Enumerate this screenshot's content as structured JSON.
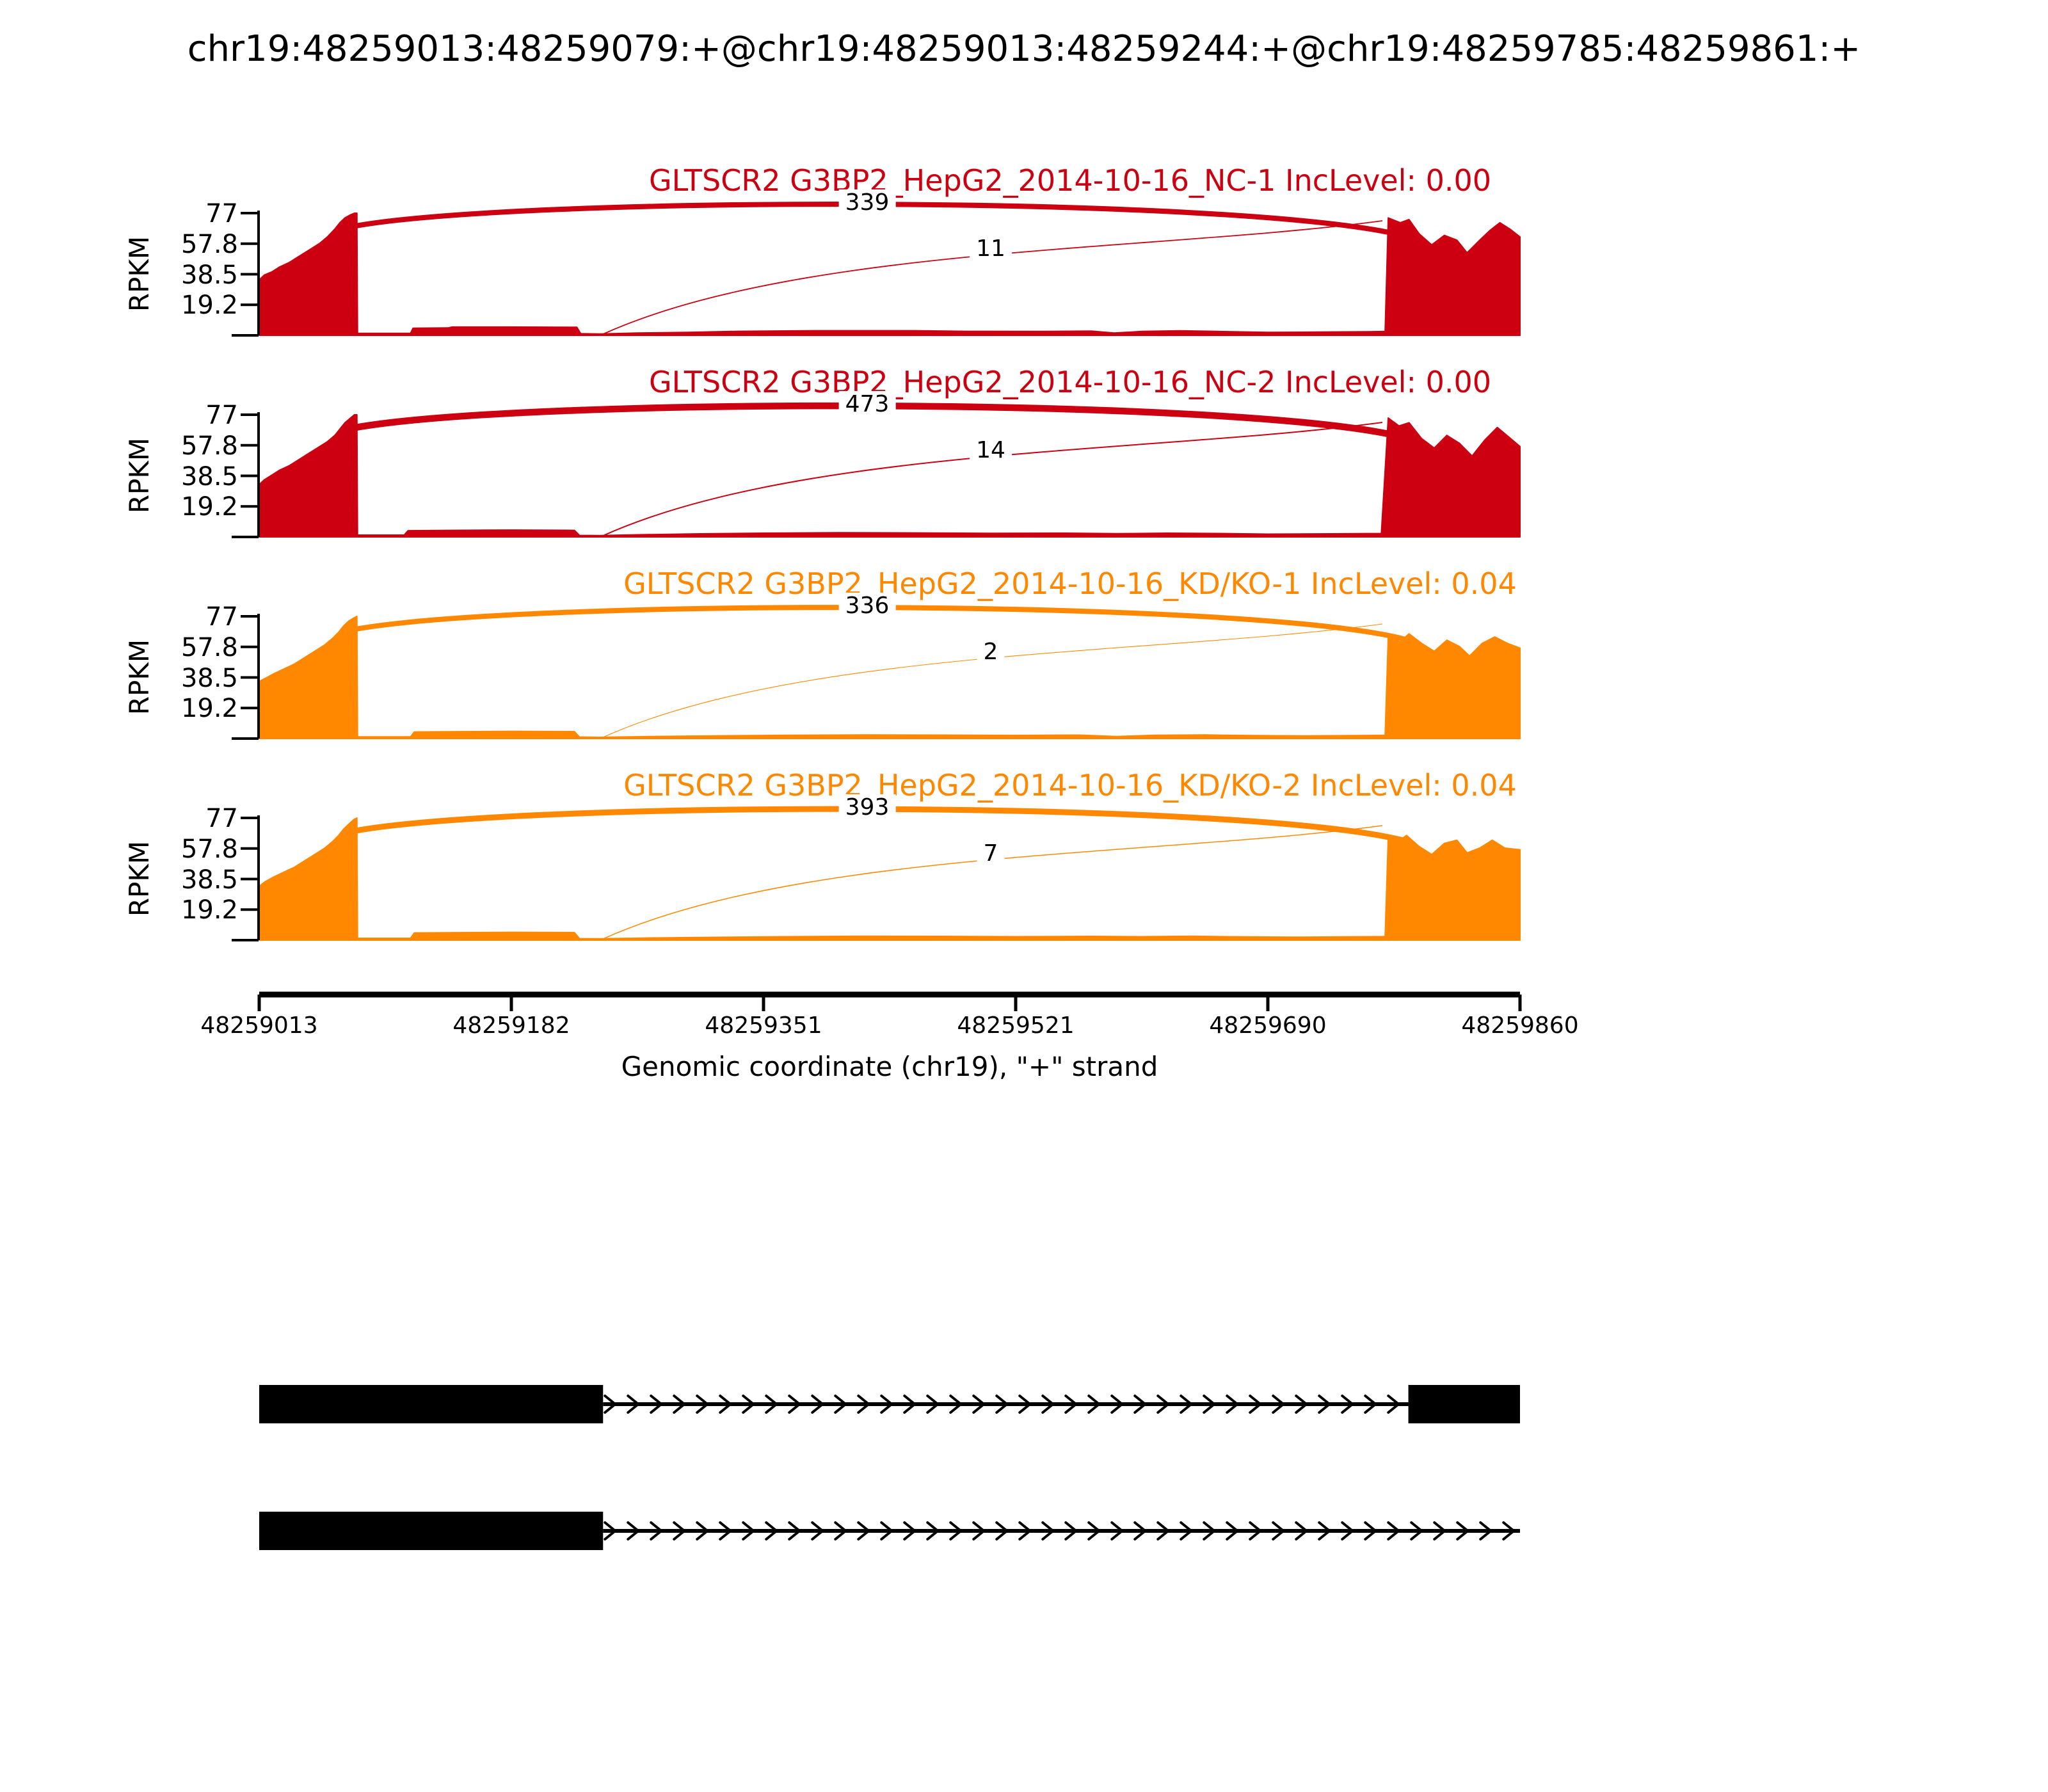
{
  "title": "chr19:48259013:48259079:+@chr19:48259013:48259244:+@chr19:48259785:48259861:+",
  "colors": {
    "nc": "#CC0011",
    "kdko": "#FF8800",
    "ink": "#000000"
  },
  "chart_data": {
    "type": "area",
    "subtype": "sashimi-coverage",
    "region_chrom": "chr19",
    "region_start": 48259013,
    "region_end": 48259860,
    "x_label": "Genomic coordinate (chr19), \"+\" strand",
    "x_ticks": [
      "48259013",
      "48259182",
      "48259351",
      "48259521",
      "48259690",
      "48259860"
    ],
    "y_label": "RPKM",
    "y_ticks": [
      19.2,
      38.5,
      57.8,
      77
    ],
    "y_max": 77,
    "grid": false,
    "tracks": [
      {
        "label": "GLTSCR2 G3BP2_HepG2_2014-10-16_NC-1 IncLevel: 0.00",
        "color_key": "nc",
        "inc_level": "0.00",
        "junctions": [
          {
            "kind": "top",
            "from": 48259079,
            "to": 48259785,
            "count": 339
          },
          {
            "kind": "low",
            "from": 48259244,
            "to": 48259785,
            "count": 11
          }
        ],
        "coverage": [
          [
            0,
            35
          ],
          [
            0.004,
            38
          ],
          [
            0.01,
            40
          ],
          [
            0.016,
            43
          ],
          [
            0.024,
            46
          ],
          [
            0.032,
            50
          ],
          [
            0.04,
            54
          ],
          [
            0.048,
            58
          ],
          [
            0.054,
            62
          ],
          [
            0.06,
            67
          ],
          [
            0.064,
            71
          ],
          [
            0.068,
            74
          ],
          [
            0.0725,
            76
          ],
          [
            0.0755,
            77
          ],
          [
            0.0775,
            77
          ],
          [
            0.078,
            1.3
          ],
          [
            0.12,
            1.3
          ],
          [
            0.122,
            4.5
          ],
          [
            0.15,
            4.7
          ],
          [
            0.153,
            5.3
          ],
          [
            0.2,
            5.3
          ],
          [
            0.252,
            5.1
          ],
          [
            0.255,
            1.1
          ],
          [
            0.27,
            0.9
          ],
          [
            0.3,
            1.5
          ],
          [
            0.34,
            1.9
          ],
          [
            0.38,
            2.6
          ],
          [
            0.44,
            3
          ],
          [
            0.52,
            3
          ],
          [
            0.56,
            2.6
          ],
          [
            0.62,
            2.5
          ],
          [
            0.66,
            2.7
          ],
          [
            0.678,
            1.5
          ],
          [
            0.7,
            2.5
          ],
          [
            0.73,
            2.9
          ],
          [
            0.76,
            2.5
          ],
          [
            0.8,
            1.9
          ],
          [
            0.84,
            2.1
          ],
          [
            0.88,
            2.3
          ],
          [
            0.893,
            2.5
          ],
          [
            0.8955,
            74
          ],
          [
            0.905,
            71
          ],
          [
            0.912,
            73
          ],
          [
            0.92,
            64
          ],
          [
            0.93,
            57
          ],
          [
            0.94,
            63
          ],
          [
            0.95,
            60
          ],
          [
            0.958,
            52
          ],
          [
            0.968,
            60
          ],
          [
            0.976,
            66
          ],
          [
            0.984,
            71
          ],
          [
            0.992,
            67
          ],
          [
            1,
            62
          ]
        ]
      },
      {
        "label": "GLTSCR2 G3BP2_HepG2_2014-10-16_NC-2 IncLevel: 0.00",
        "color_key": "nc",
        "inc_level": "0.00",
        "junctions": [
          {
            "kind": "top",
            "from": 48259079,
            "to": 48259785,
            "count": 473
          },
          {
            "kind": "low",
            "from": 48259244,
            "to": 48259785,
            "count": 14
          }
        ],
        "coverage": [
          [
            0,
            33
          ],
          [
            0.004,
            36
          ],
          [
            0.01,
            39
          ],
          [
            0.016,
            42
          ],
          [
            0.024,
            45
          ],
          [
            0.032,
            49
          ],
          [
            0.04,
            53
          ],
          [
            0.048,
            57
          ],
          [
            0.054,
            60
          ],
          [
            0.06,
            64
          ],
          [
            0.064,
            68
          ],
          [
            0.068,
            72
          ],
          [
            0.0725,
            75
          ],
          [
            0.0755,
            77
          ],
          [
            0.0775,
            77
          ],
          [
            0.078,
            1.2
          ],
          [
            0.115,
            1.2
          ],
          [
            0.118,
            4
          ],
          [
            0.15,
            4.2
          ],
          [
            0.2,
            4.4
          ],
          [
            0.25,
            4.2
          ],
          [
            0.254,
            1
          ],
          [
            0.27,
            0.9
          ],
          [
            0.3,
            1.4
          ],
          [
            0.35,
            2
          ],
          [
            0.4,
            2.4
          ],
          [
            0.46,
            2.7
          ],
          [
            0.52,
            2.6
          ],
          [
            0.58,
            2.3
          ],
          [
            0.64,
            2.4
          ],
          [
            0.68,
            2.1
          ],
          [
            0.72,
            2.4
          ],
          [
            0.76,
            2.2
          ],
          [
            0.8,
            1.8
          ],
          [
            0.85,
            2
          ],
          [
            0.89,
            2.2
          ],
          [
            0.8955,
            75
          ],
          [
            0.904,
            70
          ],
          [
            0.912,
            72
          ],
          [
            0.922,
            62
          ],
          [
            0.932,
            56
          ],
          [
            0.942,
            64
          ],
          [
            0.952,
            59
          ],
          [
            0.962,
            51
          ],
          [
            0.972,
            61
          ],
          [
            0.982,
            69
          ],
          [
            0.991,
            63
          ],
          [
            1,
            57
          ]
        ]
      },
      {
        "label": "GLTSCR2 G3BP2_HepG2_2014-10-16_KD/KO-1 IncLevel: 0.04",
        "color_key": "kdko",
        "inc_level": "0.04",
        "junctions": [
          {
            "kind": "top",
            "from": 48259079,
            "to": 48259785,
            "count": 336
          },
          {
            "kind": "low",
            "from": 48259244,
            "to": 48259785,
            "count": 2
          }
        ],
        "coverage": [
          [
            0,
            36
          ],
          [
            0.005,
            38
          ],
          [
            0.012,
            41
          ],
          [
            0.02,
            44
          ],
          [
            0.028,
            47
          ],
          [
            0.036,
            51
          ],
          [
            0.044,
            55
          ],
          [
            0.052,
            59
          ],
          [
            0.058,
            63
          ],
          [
            0.063,
            67
          ],
          [
            0.067,
            71
          ],
          [
            0.071,
            74
          ],
          [
            0.075,
            76
          ],
          [
            0.0775,
            77
          ],
          [
            0.078,
            1.1
          ],
          [
            0.12,
            1.1
          ],
          [
            0.123,
            4.2
          ],
          [
            0.16,
            4.4
          ],
          [
            0.2,
            4.6
          ],
          [
            0.25,
            4.4
          ],
          [
            0.254,
            1
          ],
          [
            0.27,
            0.8
          ],
          [
            0.31,
            1.3
          ],
          [
            0.36,
            1.7
          ],
          [
            0.42,
            2.1
          ],
          [
            0.48,
            2.3
          ],
          [
            0.54,
            2.2
          ],
          [
            0.6,
            2
          ],
          [
            0.65,
            2.2
          ],
          [
            0.68,
            1.3
          ],
          [
            0.71,
            2.1
          ],
          [
            0.75,
            2.3
          ],
          [
            0.79,
            1.9
          ],
          [
            0.83,
            1.7
          ],
          [
            0.87,
            1.9
          ],
          [
            0.893,
            2.1
          ],
          [
            0.8955,
            64
          ],
          [
            0.905,
            61
          ],
          [
            0.912,
            66
          ],
          [
            0.922,
            60
          ],
          [
            0.932,
            55
          ],
          [
            0.942,
            62
          ],
          [
            0.952,
            58
          ],
          [
            0.96,
            52
          ],
          [
            0.97,
            60
          ],
          [
            0.98,
            64
          ],
          [
            0.99,
            60
          ],
          [
            1,
            57
          ]
        ]
      },
      {
        "label": "GLTSCR2 G3BP2_HepG2_2014-10-16_KD/KO-2 IncLevel: 0.04",
        "color_key": "kdko",
        "inc_level": "0.04",
        "junctions": [
          {
            "kind": "top",
            "from": 48259079,
            "to": 48259785,
            "count": 393
          },
          {
            "kind": "low",
            "from": 48259244,
            "to": 48259785,
            "count": 7
          }
        ],
        "coverage": [
          [
            0,
            34
          ],
          [
            0.005,
            37
          ],
          [
            0.012,
            40
          ],
          [
            0.02,
            43
          ],
          [
            0.028,
            46
          ],
          [
            0.036,
            50
          ],
          [
            0.044,
            54
          ],
          [
            0.052,
            58
          ],
          [
            0.058,
            62
          ],
          [
            0.063,
            66
          ],
          [
            0.067,
            70
          ],
          [
            0.071,
            73
          ],
          [
            0.075,
            76
          ],
          [
            0.0775,
            77
          ],
          [
            0.078,
            1.2
          ],
          [
            0.12,
            1.2
          ],
          [
            0.123,
            4.6
          ],
          [
            0.16,
            4.8
          ],
          [
            0.2,
            5
          ],
          [
            0.25,
            4.8
          ],
          [
            0.254,
            1
          ],
          [
            0.27,
            0.9
          ],
          [
            0.31,
            1.4
          ],
          [
            0.36,
            1.8
          ],
          [
            0.42,
            2.2
          ],
          [
            0.48,
            2.5
          ],
          [
            0.54,
            2.4
          ],
          [
            0.6,
            2.2
          ],
          [
            0.66,
            2.4
          ],
          [
            0.7,
            2.2
          ],
          [
            0.74,
            2.5
          ],
          [
            0.78,
            2.1
          ],
          [
            0.82,
            1.9
          ],
          [
            0.86,
            2.1
          ],
          [
            0.893,
            2.3
          ],
          [
            0.8955,
            65
          ],
          [
            0.903,
            62
          ],
          [
            0.91,
            66
          ],
          [
            0.92,
            59
          ],
          [
            0.93,
            54
          ],
          [
            0.94,
            61
          ],
          [
            0.95,
            63
          ],
          [
            0.958,
            55
          ],
          [
            0.968,
            58
          ],
          [
            0.978,
            63
          ],
          [
            0.988,
            58
          ],
          [
            1,
            57
          ]
        ]
      }
    ],
    "transcripts": [
      {
        "strand": "+",
        "exons": [
          [
            48259013,
            48259244
          ],
          [
            48259785,
            48259860
          ]
        ],
        "line_end": 48259785
      },
      {
        "strand": "+",
        "exons": [
          [
            48259013,
            48259244
          ]
        ],
        "line_end": 48259860
      }
    ]
  }
}
